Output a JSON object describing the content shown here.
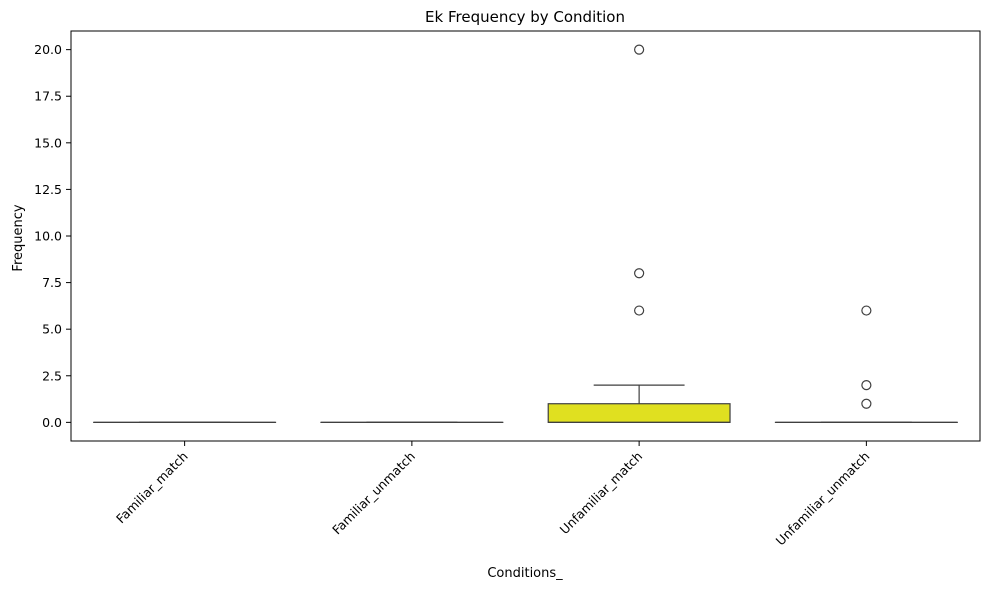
{
  "chart_data": {
    "type": "box",
    "title": "Ek Frequency by Condition",
    "xlabel": "Conditions_",
    "ylabel": "Frequency",
    "categories": [
      "Familiar_match",
      "Familiar_unmatch",
      "Unfamiliar_match",
      "Unfamiliar_unmatch"
    ],
    "ylim": [
      -1.0,
      21.0
    ],
    "yticks": [
      0.0,
      2.5,
      5.0,
      7.5,
      10.0,
      12.5,
      15.0,
      17.5,
      20.0
    ],
    "ytick_labels": [
      "0.0",
      "2.5",
      "5.0",
      "7.5",
      "10.0",
      "12.5",
      "15.0",
      "17.5",
      "20.0"
    ],
    "grid": false,
    "series": [
      {
        "category": "Familiar_match",
        "whisker_low": 0,
        "q1": 0,
        "median": 0,
        "q3": 0,
        "whisker_high": 0,
        "outliers": [],
        "color": "#1f77b4"
      },
      {
        "category": "Familiar_unmatch",
        "whisker_low": 0,
        "q1": 0,
        "median": 0,
        "q3": 0,
        "whisker_high": 0,
        "outliers": [],
        "color": "#ff7f0e"
      },
      {
        "category": "Unfamiliar_match",
        "whisker_low": 0,
        "q1": 0,
        "median": 0,
        "q3": 1,
        "whisker_high": 2,
        "outliers": [
          6,
          8,
          20
        ],
        "color": "#e0e020"
      },
      {
        "category": "Unfamiliar_unmatch",
        "whisker_low": 0,
        "q1": 0,
        "median": 0,
        "q3": 0,
        "whisker_high": 0,
        "outliers": [
          1,
          2,
          6
        ],
        "color": "#d62728"
      }
    ]
  }
}
